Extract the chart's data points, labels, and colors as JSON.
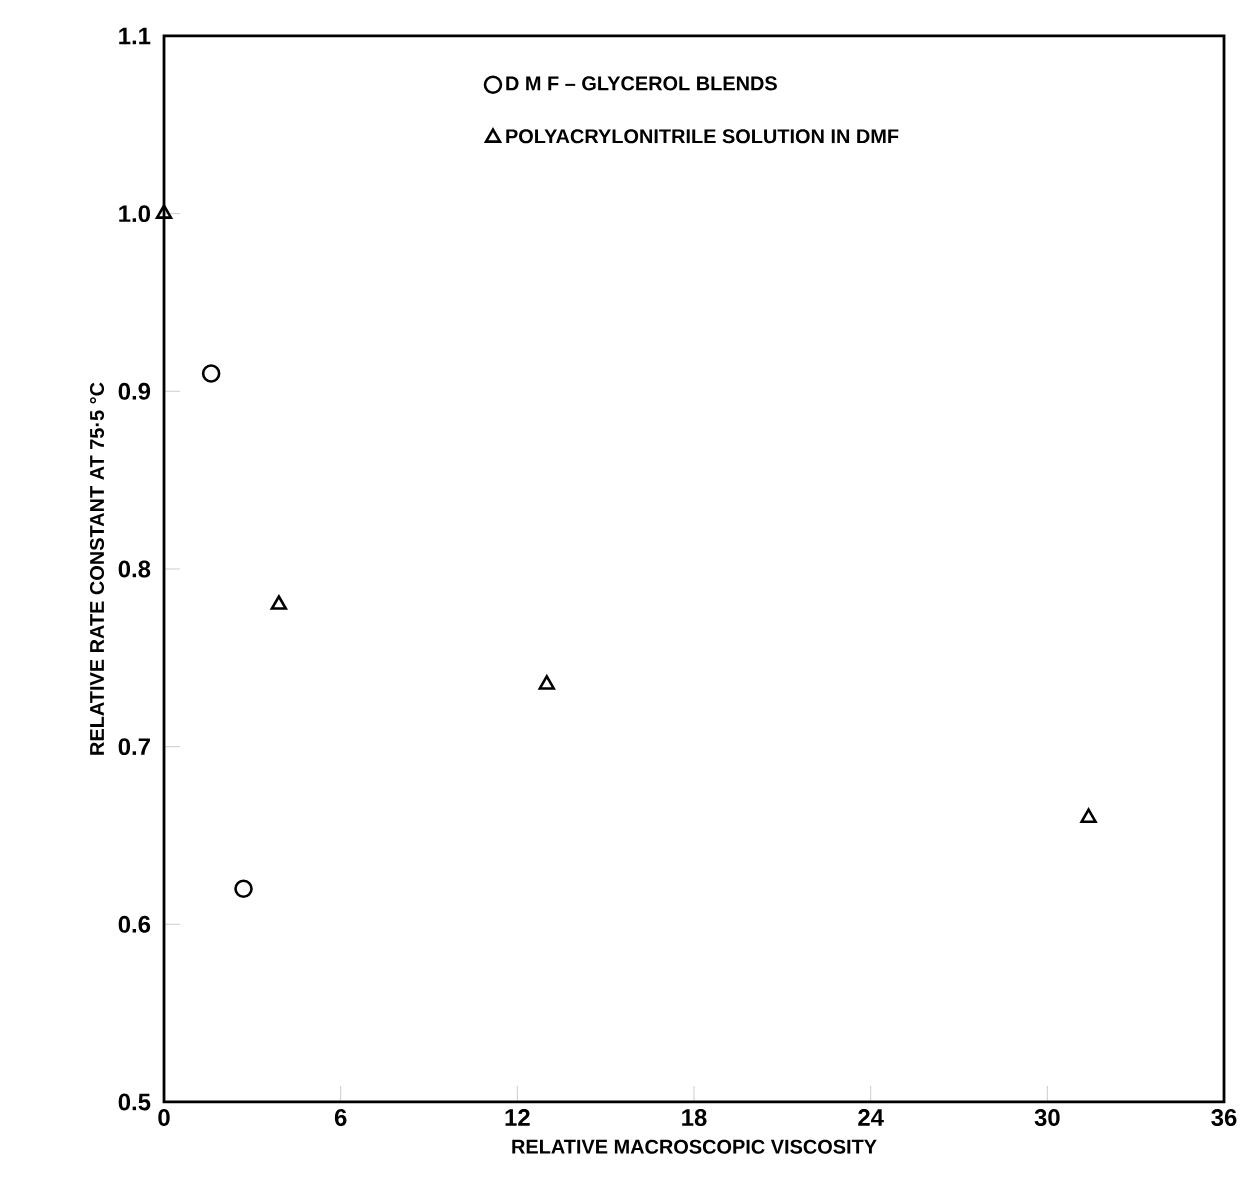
{
  "chart_data": {
    "type": "scatter",
    "xlabel": "RELATIVE MACROSCOPIC VISCOSITY",
    "ylabel": "RELATIVE RATE CONSTANT AT 75·5 °C",
    "xlim": [
      0,
      36
    ],
    "xticks": [
      0,
      6,
      12,
      18,
      24,
      30,
      36
    ],
    "ylim": [
      0.5,
      1.1
    ],
    "yticks": [
      0.5,
      0.6,
      0.7,
      0.8,
      0.9,
      {
        "value": 1.0,
        "label": "1.0"
      },
      1.1
    ],
    "grid": false,
    "legend": "top",
    "series": [
      {
        "name": "D M F – GLYCEROL BLENDS",
        "color": "#000000",
        "marker": "circle",
        "x": [
          1.6,
          2.7
        ],
        "values": [
          0.91,
          0.62
        ]
      },
      {
        "name": "POLYACRYLONITRILE SOLUTION IN DMF",
        "color": "#000000",
        "marker": "triangle",
        "x": [
          0,
          3.9,
          13.0,
          31.4
        ],
        "values": [
          1.0,
          0.78,
          0.735,
          0.66
        ]
      }
    ]
  }
}
